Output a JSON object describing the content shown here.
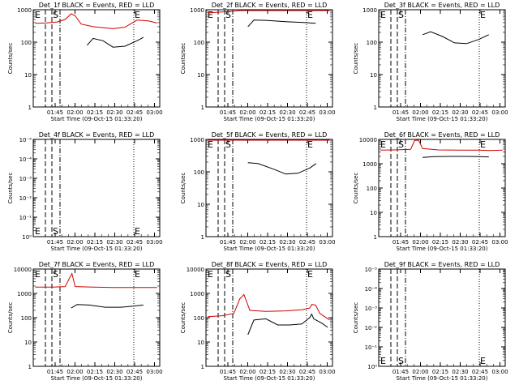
{
  "chart_data": [
    {
      "type": "line",
      "title": "Det_1f BLACK = Events, RED = LLD",
      "xlabel": "Start Time (09-Oct-15 01:33:20)",
      "ylabel": "Counts/sec",
      "yscale": "log",
      "y_ticks": [
        "1",
        "10",
        "100",
        "1000"
      ],
      "x_ticks": [
        "01:45",
        "02:00",
        "02:15",
        "02:30",
        "02:45",
        "03:00"
      ],
      "markers": [
        {
          "label": "E",
          "style": "dashed"
        },
        {
          "label": "S",
          "style": "dashed"
        },
        {
          "label": "",
          "style": "dashdot"
        },
        {
          "label": "E",
          "style": "dotted"
        }
      ],
      "series": [
        {
          "color": "#000000",
          "x": [
            1.0,
            1.1,
            1.25,
            1.35,
            1.5,
            1.75,
            2.0,
            2.3,
            2.6,
            2.76
          ],
          "y": [
            null,
            null,
            null,
            80,
            130,
            110,
            70,
            75,
            110,
            140
          ]
        },
        {
          "color": "#d00000",
          "x": [
            0.05,
            0.3,
            0.6,
            0.8,
            0.95,
            1.05,
            1.2,
            1.5,
            2.0,
            2.3,
            2.6,
            2.9,
            3.1
          ],
          "y": [
            380,
            390,
            420,
            500,
            750,
            650,
            360,
            300,
            260,
            290,
            480,
            450,
            390
          ]
        }
      ]
    },
    {
      "type": "line",
      "title": "Det_2f BLACK = Events, RED = LLD",
      "xlabel": "Start Time (09-Oct-15 01:33:20)",
      "ylabel": "Counts/sec",
      "yscale": "log",
      "y_ticks": [
        "1",
        "10",
        "100",
        "1000"
      ],
      "x_ticks": [
        "01:45",
        "02:00",
        "02:15",
        "02:30",
        "02:45",
        "03:00"
      ],
      "markers": [
        {
          "label": "E",
          "style": "dashed"
        },
        {
          "label": "S",
          "style": "dashed"
        },
        {
          "label": "",
          "style": "dashdot"
        },
        {
          "label": "E",
          "style": "dotted"
        }
      ],
      "series": [
        {
          "color": "#000000",
          "x": [
            1.05,
            1.2,
            1.5,
            2.0,
            2.5,
            2.75
          ],
          "y": [
            300,
            480,
            470,
            430,
            400,
            380
          ]
        },
        {
          "color": "#d00000",
          "x": [
            0.05,
            0.4,
            0.7,
            0.85,
            1.0,
            1.15,
            1.5,
            2.0,
            2.5,
            2.9,
            3.1
          ],
          "y": [
            800,
            850,
            900,
            1000,
            4000,
            1500,
            1300,
            1200,
            1100,
            1000,
            950
          ]
        }
      ]
    },
    {
      "type": "line",
      "title": "Det_3f BLACK = Events, RED = LLD",
      "xlabel": "Start Time (09-Oct-15 01:33:20)",
      "ylabel": "Counts/sec",
      "yscale": "log",
      "y_ticks": [
        "1",
        "10",
        "100",
        "1000"
      ],
      "x_ticks": [
        "01:45",
        "02:00",
        "02:15",
        "02:30",
        "02:45",
        "03:00"
      ],
      "markers": [
        {
          "label": "E",
          "style": "dashed"
        },
        {
          "label": "S",
          "style": "dashed"
        },
        {
          "label": "",
          "style": "dashdot"
        },
        {
          "label": "E",
          "style": "dotted"
        }
      ],
      "series": [
        {
          "color": "#000000",
          "x": [
            1.1,
            1.3,
            1.6,
            1.9,
            2.2,
            2.5,
            2.76
          ],
          "y": [
            170,
            210,
            150,
            95,
            90,
            120,
            170
          ]
        }
      ]
    },
    {
      "type": "line",
      "title": "Det_4f BLACK = Events, RED = LLD",
      "xlabel": "Start Time (09-Oct-15 01:33:20)",
      "ylabel": "Counts/sec",
      "yscale": "log",
      "y_ticks": [
        "10⁰",
        "10⁻¹",
        "10⁻²",
        "10⁻³",
        "10⁻⁴",
        "10⁻⁵"
      ],
      "x_ticks": [
        "01:45",
        "02:00",
        "02:15",
        "02:30",
        "02:45",
        "03:00"
      ],
      "markers": [
        {
          "label": "E",
          "style": "dashed"
        },
        {
          "label": "S",
          "style": "dashed"
        },
        {
          "label": "",
          "style": "dashdot"
        },
        {
          "label": "E",
          "style": "dotted"
        }
      ],
      "series": []
    },
    {
      "type": "line",
      "title": "Det_5f BLACK = Events, RED = LLD",
      "xlabel": "Start Time (09-Oct-15 01:33:20)",
      "ylabel": "Counts/sec",
      "yscale": "log",
      "y_ticks": [
        "1",
        "10",
        "100",
        "1000"
      ],
      "x_ticks": [
        "01:45",
        "02:00",
        "02:15",
        "02:30",
        "02:45",
        "03:00"
      ],
      "markers": [
        {
          "label": "E",
          "style": "dashed"
        },
        {
          "label": "S",
          "style": "dashed"
        },
        {
          "label": "",
          "style": "dashdot"
        },
        {
          "label": "E",
          "style": "dotted"
        }
      ],
      "series": [
        {
          "color": "#000000",
          "x": [
            1.05,
            1.3,
            1.7,
            2.0,
            2.3,
            2.6,
            2.76
          ],
          "y": [
            190,
            180,
            120,
            85,
            90,
            130,
            180
          ]
        },
        {
          "color": "#d00000",
          "x": [
            0.05,
            0.5,
            1.0,
            1.5,
            2.0,
            2.5,
            2.9,
            3.1
          ],
          "y": [
            1000,
            1000,
            1050,
            1000,
            950,
            950,
            1000,
            950
          ]
        }
      ]
    },
    {
      "type": "line",
      "title": "Det_6f BLACK = Events, RED = LLD",
      "xlabel": "Start Time (09-Oct-15 01:33:20)",
      "ylabel": "Counts/sec",
      "yscale": "log",
      "y_ticks": [
        "1",
        "10",
        "100",
        "1000",
        "10000"
      ],
      "x_ticks": [
        "01:45",
        "02:00",
        "02:15",
        "02:30",
        "02:45",
        "03:00"
      ],
      "markers": [
        {
          "label": "E",
          "style": "dashed"
        },
        {
          "label": "S",
          "style": "dashed"
        },
        {
          "label": "",
          "style": "dashdot"
        },
        {
          "label": "E",
          "style": "dotted"
        }
      ],
      "series": [
        {
          "color": "#000000",
          "x": [
            1.1,
            1.4,
            1.8,
            2.2,
            2.5,
            2.76
          ],
          "y": [
            1800,
            1950,
            2000,
            2000,
            1950,
            1900
          ]
        },
        {
          "color": "#d00000",
          "x": [
            0.05,
            0.4,
            0.8,
            0.9,
            1.0,
            1.1,
            1.5,
            2.0,
            2.5,
            2.8,
            3.1
          ],
          "y": [
            3600,
            3700,
            3900,
            9000,
            12000,
            4200,
            3700,
            3600,
            3600,
            3500,
            3600
          ]
        }
      ]
    },
    {
      "type": "line",
      "title": "Det_7f BLACK = Events, RED = LLD",
      "xlabel": "Start Time (09-Oct-15 01:33:20)",
      "ylabel": "Counts/sec",
      "yscale": "log",
      "y_ticks": [
        "1",
        "10",
        "100",
        "1000",
        "10000"
      ],
      "x_ticks": [
        "01:45",
        "02:00",
        "02:15",
        "02:30",
        "02:45",
        "03:00"
      ],
      "markers": [
        {
          "label": "E",
          "style": "dashed"
        },
        {
          "label": "S",
          "style": "dashed"
        },
        {
          "label": "",
          "style": "dashdot"
        },
        {
          "label": "E",
          "style": "dotted"
        }
      ],
      "series": [
        {
          "color": "#000000",
          "x": [
            0.95,
            1.1,
            1.4,
            1.8,
            2.2,
            2.5,
            2.76
          ],
          "y": [
            250,
            350,
            330,
            270,
            270,
            300,
            330
          ]
        },
        {
          "color": "#d00000",
          "x": [
            0.05,
            0.5,
            0.8,
            0.9,
            0.97,
            1.05,
            1.5,
            2.0,
            2.5,
            3.1
          ],
          "y": [
            1800,
            1800,
            1900,
            4000,
            6500,
            1900,
            1800,
            1750,
            1750,
            1750
          ]
        }
      ]
    },
    {
      "type": "line",
      "title": "Det_8f BLACK = Events, RED = LLD",
      "xlabel": "Start Time (09-Oct-15 01:33:20)",
      "ylabel": "Counts/sec",
      "yscale": "log",
      "y_ticks": [
        "1",
        "10",
        "100",
        "1000",
        "10000"
      ],
      "x_ticks": [
        "01:45",
        "02:00",
        "02:15",
        "02:30",
        "02:45",
        "03:00"
      ],
      "markers": [
        {
          "label": "E",
          "style": "dashed"
        },
        {
          "label": "S",
          "style": "dashed"
        },
        {
          "label": "",
          "style": "dashdot"
        },
        {
          "label": "E",
          "style": "dotted"
        }
      ],
      "series": [
        {
          "color": "#000000",
          "x": [
            1.05,
            1.2,
            1.5,
            1.8,
            2.1,
            2.4,
            2.6,
            2.65,
            2.7,
            2.9,
            3.05
          ],
          "y": [
            20,
            80,
            90,
            50,
            50,
            55,
            100,
            140,
            90,
            60,
            40
          ]
        },
        {
          "color": "#d00000",
          "x": [
            0.05,
            0.4,
            0.7,
            0.85,
            0.95,
            1.1,
            1.5,
            2.0,
            2.4,
            2.6,
            2.65,
            2.75,
            2.85,
            3.1
          ],
          "y": [
            110,
            120,
            150,
            600,
            900,
            200,
            180,
            190,
            210,
            250,
            350,
            330,
            150,
            80
          ]
        }
      ]
    },
    {
      "type": "line",
      "title": "Det_9f BLACK = Events, RED = LLD",
      "xlabel": "Start Time (09-Oct-15 01:33:20)",
      "ylabel": "Counts/sec",
      "yscale": "log",
      "y_ticks": [
        "10⁰",
        "10⁻¹",
        "10⁻²",
        "10⁻³",
        "10⁻⁴",
        "10⁻⁵"
      ],
      "x_ticks": [
        "01:45",
        "02:00",
        "02:15",
        "02:30",
        "02:45",
        "03:00"
      ],
      "markers": [
        {
          "label": "E",
          "style": "dashed"
        },
        {
          "label": "S",
          "style": "dashed"
        },
        {
          "label": "",
          "style": "dashdot"
        },
        {
          "label": "E",
          "style": "dotted"
        }
      ],
      "series": []
    }
  ]
}
